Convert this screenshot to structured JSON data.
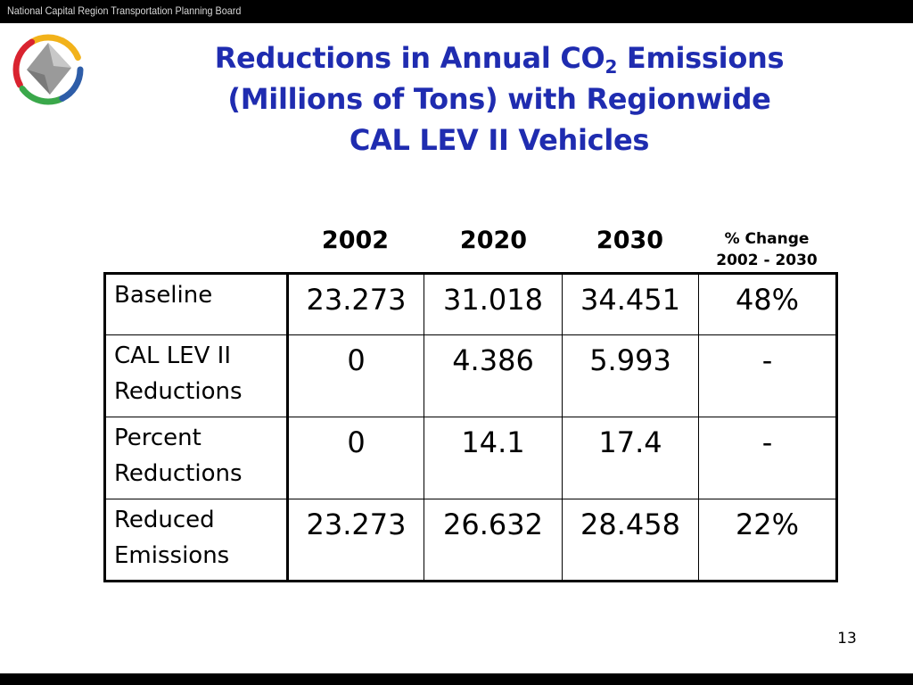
{
  "header": {
    "org_name": "National Capital Region Transportation Planning Board"
  },
  "slide": {
    "title_line1_pre": "Reductions in Annual CO",
    "title_line1_sub": "2",
    "title_line1_post": " Emissions",
    "title_line2": "(Millions of Tons) with Regionwide",
    "title_line3": "CAL LEV II Vehicles",
    "page_number": "13"
  },
  "table": {
    "columns": [
      "2002",
      "2020",
      "2030"
    ],
    "change_header_line1": "% Change",
    "change_header_line2": "2002 - 2030",
    "rows": [
      {
        "label_line1": "Baseline",
        "label_line2": "",
        "values": [
          "23.273",
          "31.018",
          "34.451",
          "48%"
        ]
      },
      {
        "label_line1": "CAL LEV II",
        "label_line2": "Reductions",
        "values": [
          "0",
          "4.386",
          "5.993",
          "-"
        ]
      },
      {
        "label_line1": "Percent",
        "label_line2": "Reductions",
        "values": [
          "0",
          "14.1",
          "17.4",
          "-"
        ]
      },
      {
        "label_line1": "Reduced",
        "label_line2": "Emissions",
        "values": [
          "23.273",
          "26.632",
          "28.458",
          "22%"
        ]
      }
    ]
  },
  "colors": {
    "title": "#1f2cb0",
    "logo_yellow": "#f2b21a",
    "logo_red": "#d9232f",
    "logo_green": "#3aa84a",
    "logo_blue": "#2e5da8",
    "logo_gray": "#9a9a9a"
  },
  "icons": {
    "logo": "tpb-logo-icon"
  }
}
